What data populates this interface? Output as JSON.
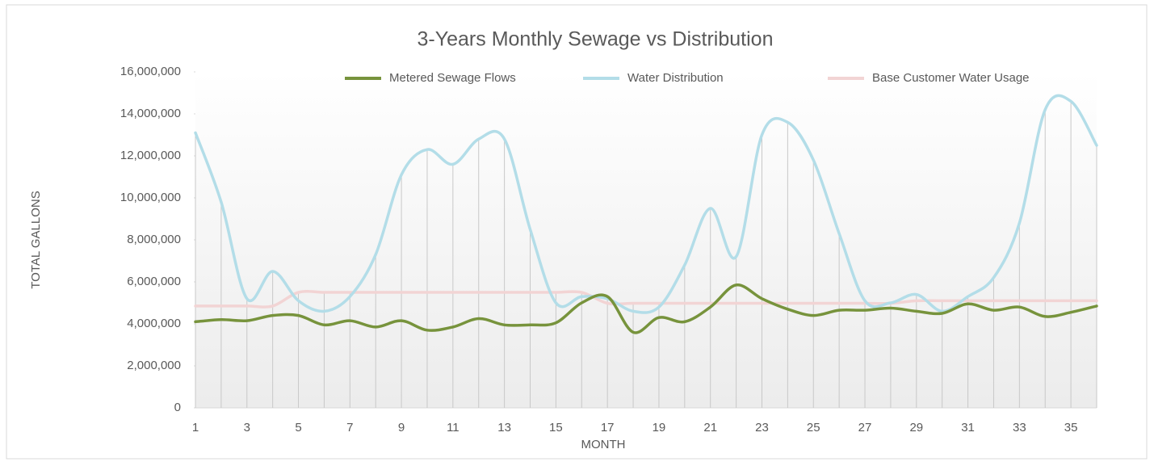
{
  "chart_data": {
    "type": "line",
    "title": "3-Years Monthly Sewage vs Distribution",
    "x_label": "MONTH",
    "y_label": "TOTAL GALLONS",
    "x": [
      1,
      2,
      3,
      4,
      5,
      6,
      7,
      8,
      9,
      10,
      11,
      12,
      13,
      14,
      15,
      16,
      17,
      18,
      19,
      20,
      21,
      22,
      23,
      24,
      25,
      26,
      27,
      28,
      29,
      30,
      31,
      32,
      33,
      34,
      35,
      36
    ],
    "xlim": [
      1,
      36
    ],
    "xticks": [
      1,
      3,
      5,
      7,
      9,
      11,
      13,
      15,
      17,
      19,
      21,
      23,
      25,
      27,
      29,
      31,
      33,
      35
    ],
    "ylim": [
      0,
      16000000
    ],
    "yticks": [
      0,
      {
        "value": 2000000,
        "label": "2,000,000"
      },
      {
        "value": 4000000,
        "label": "4,000,000"
      },
      {
        "value": 6000000,
        "label": "6,000,000"
      },
      {
        "value": 8000000,
        "label": "8,000,000"
      },
      {
        "value": 10000000,
        "label": "10,000,000"
      },
      {
        "value": 12000000,
        "label": "12,000,000"
      },
      {
        "value": 14000000,
        "label": "14,000,000"
      },
      {
        "value": 16000000,
        "label": "16,000,000"
      }
    ],
    "smooth": true,
    "drop_lines": true,
    "series": [
      {
        "name": "Metered Sewage Flows",
        "color": "#77933c",
        "width": 3.5,
        "values": [
          4100000,
          4200000,
          4150000,
          4400000,
          4400000,
          3950000,
          4150000,
          3850000,
          4150000,
          3700000,
          3850000,
          4250000,
          3950000,
          3950000,
          4050000,
          5000000,
          5300000,
          3600000,
          4300000,
          4100000,
          4800000,
          5850000,
          5200000,
          4700000,
          4400000,
          4650000,
          4650000,
          4750000,
          4600000,
          4500000,
          4950000,
          4650000,
          4800000,
          4350000,
          4550000,
          4850000
        ]
      },
      {
        "name": "Water Distribution",
        "color": "#b3dde8",
        "width": 3.5,
        "values": [
          13100000,
          9800000,
          5200000,
          6500000,
          5100000,
          4600000,
          5300000,
          7300000,
          11100000,
          12300000,
          11600000,
          12800000,
          12800000,
          8500000,
          5000000,
          5300000,
          5200000,
          4600000,
          4800000,
          6800000,
          9500000,
          7200000,
          13000000,
          13600000,
          11800000,
          8300000,
          5100000,
          5000000,
          5400000,
          4600000,
          5300000,
          6200000,
          8800000,
          14200000,
          14600000,
          12500000
        ]
      },
      {
        "name": "Base Customer Water Usage",
        "color": "#f2d4d4",
        "width": 3.5,
        "values": [
          4850000,
          4850000,
          4850000,
          4850000,
          5500000,
          5500000,
          5500000,
          5500000,
          5500000,
          5500000,
          5500000,
          5500000,
          5500000,
          5500000,
          5500000,
          5500000,
          4980000,
          4980000,
          4980000,
          4980000,
          4980000,
          4980000,
          4980000,
          4980000,
          4980000,
          4980000,
          4980000,
          4980000,
          5100000,
          5100000,
          5100000,
          5100000,
          5100000,
          5100000,
          5100000,
          5100000
        ]
      }
    ]
  }
}
